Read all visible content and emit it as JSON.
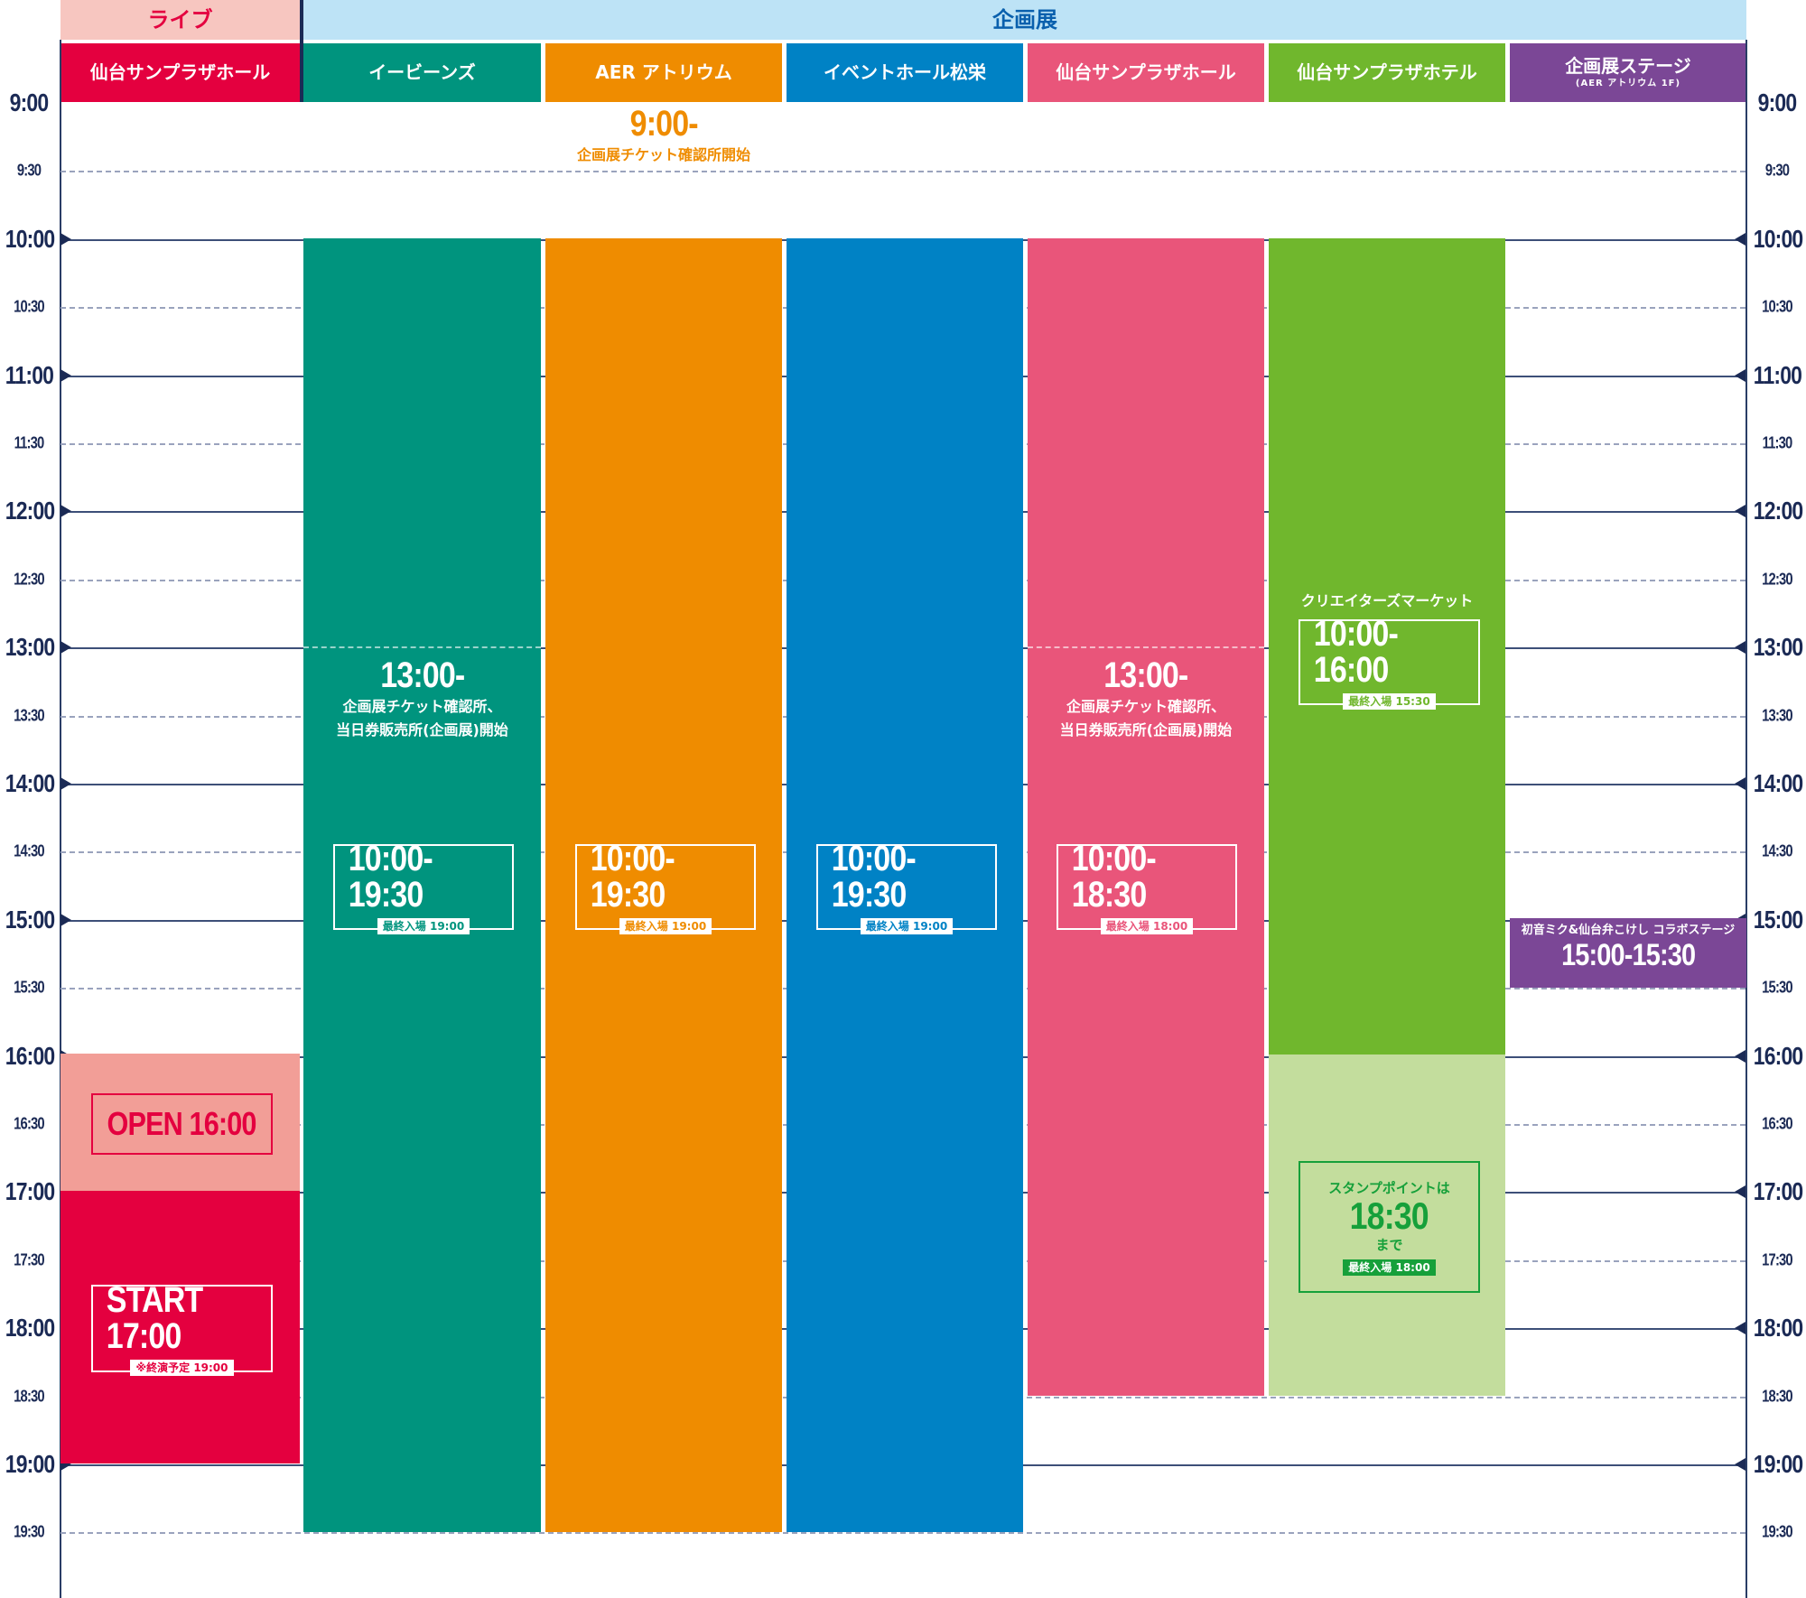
{
  "categories": {
    "live": "ライブ",
    "exhibition": "企画展"
  },
  "venues": {
    "live_sunplaza_hall": "仙台サンプラザホール",
    "ebeans": "イービーンズ",
    "aer_atrium": "AER アトリウム",
    "event_hall_matsuei": "イベントホール松栄",
    "exh_sunplaza_hall": "仙台サンプラザホール",
    "sunplaza_hotel": "仙台サンプラザホテル",
    "exh_stage": "企画展ステージ",
    "exh_stage_sub": "(AER アトリウム 1F)"
  },
  "time_labels": {
    "t0900": "9:00",
    "t0930": "9:30",
    "t1000": "10:00",
    "t1030": "10:30",
    "t1100": "11:00",
    "t1130": "11:30",
    "t1200": "12:00",
    "t1230": "12:30",
    "t1300": "13:00",
    "t1330": "13:30",
    "t1400": "14:00",
    "t1430": "14:30",
    "t1500": "15:00",
    "t1530": "15:30",
    "t1600": "16:00",
    "t1630": "16:30",
    "t1700": "17:00",
    "t1730": "17:30",
    "t1800": "18:00",
    "t1830": "18:30",
    "t1900": "19:00",
    "t1930": "19:30"
  },
  "notices": {
    "ticket_open_time": "9:00-",
    "ticket_open_text": "企画展チケット確認所開始",
    "ebeans_time": "13:00-",
    "ebeans_line1": "企画展チケット確認所、",
    "ebeans_line2": "当日券販売所(企画展)開始",
    "hall_time": "13:00-",
    "hall_line1": "企画展チケット確認所、",
    "hall_line2": "当日券販売所(企画展)開始"
  },
  "live": {
    "open": "OPEN 16:00",
    "start": "START 17:00",
    "end_note": "※終演予定 19:00"
  },
  "hours": {
    "ebeans": "10:00-19:30",
    "ebeans_last": "最終入場 19:00",
    "aer": "10:00-19:30",
    "aer_last": "最終入場 19:00",
    "matsuei": "10:00-19:30",
    "matsuei_last": "最終入場 19:00",
    "hall": "10:00-18:30",
    "hall_last": "最終入場 18:00"
  },
  "hotel": {
    "market_title": "クリエイターズマーケット",
    "market_hours": "10:00-16:00",
    "market_last": "最終入場 15:30",
    "stamp_line1": "スタンプポイントは",
    "stamp_time": "18:30",
    "stamp_line2": "まで",
    "stamp_last": "最終入場 18:00"
  },
  "stage": {
    "title": "初音ミク&仙台弁こけし コラボステージ",
    "time": "15:00-15:30"
  },
  "colors": {
    "live_red": "#e4003f",
    "live_pink_light": "#f29e97",
    "live_header_bg": "#f7c6c0",
    "exh_header_bg": "#bde3f6",
    "ebeans": "#00947e",
    "aer": "#ef8c00",
    "matsuei": "#0082c5",
    "hall": "#e9557a",
    "hotel": "#70b72d",
    "hotel_light": "#c3dd9d",
    "stage": "#7b4796"
  }
}
